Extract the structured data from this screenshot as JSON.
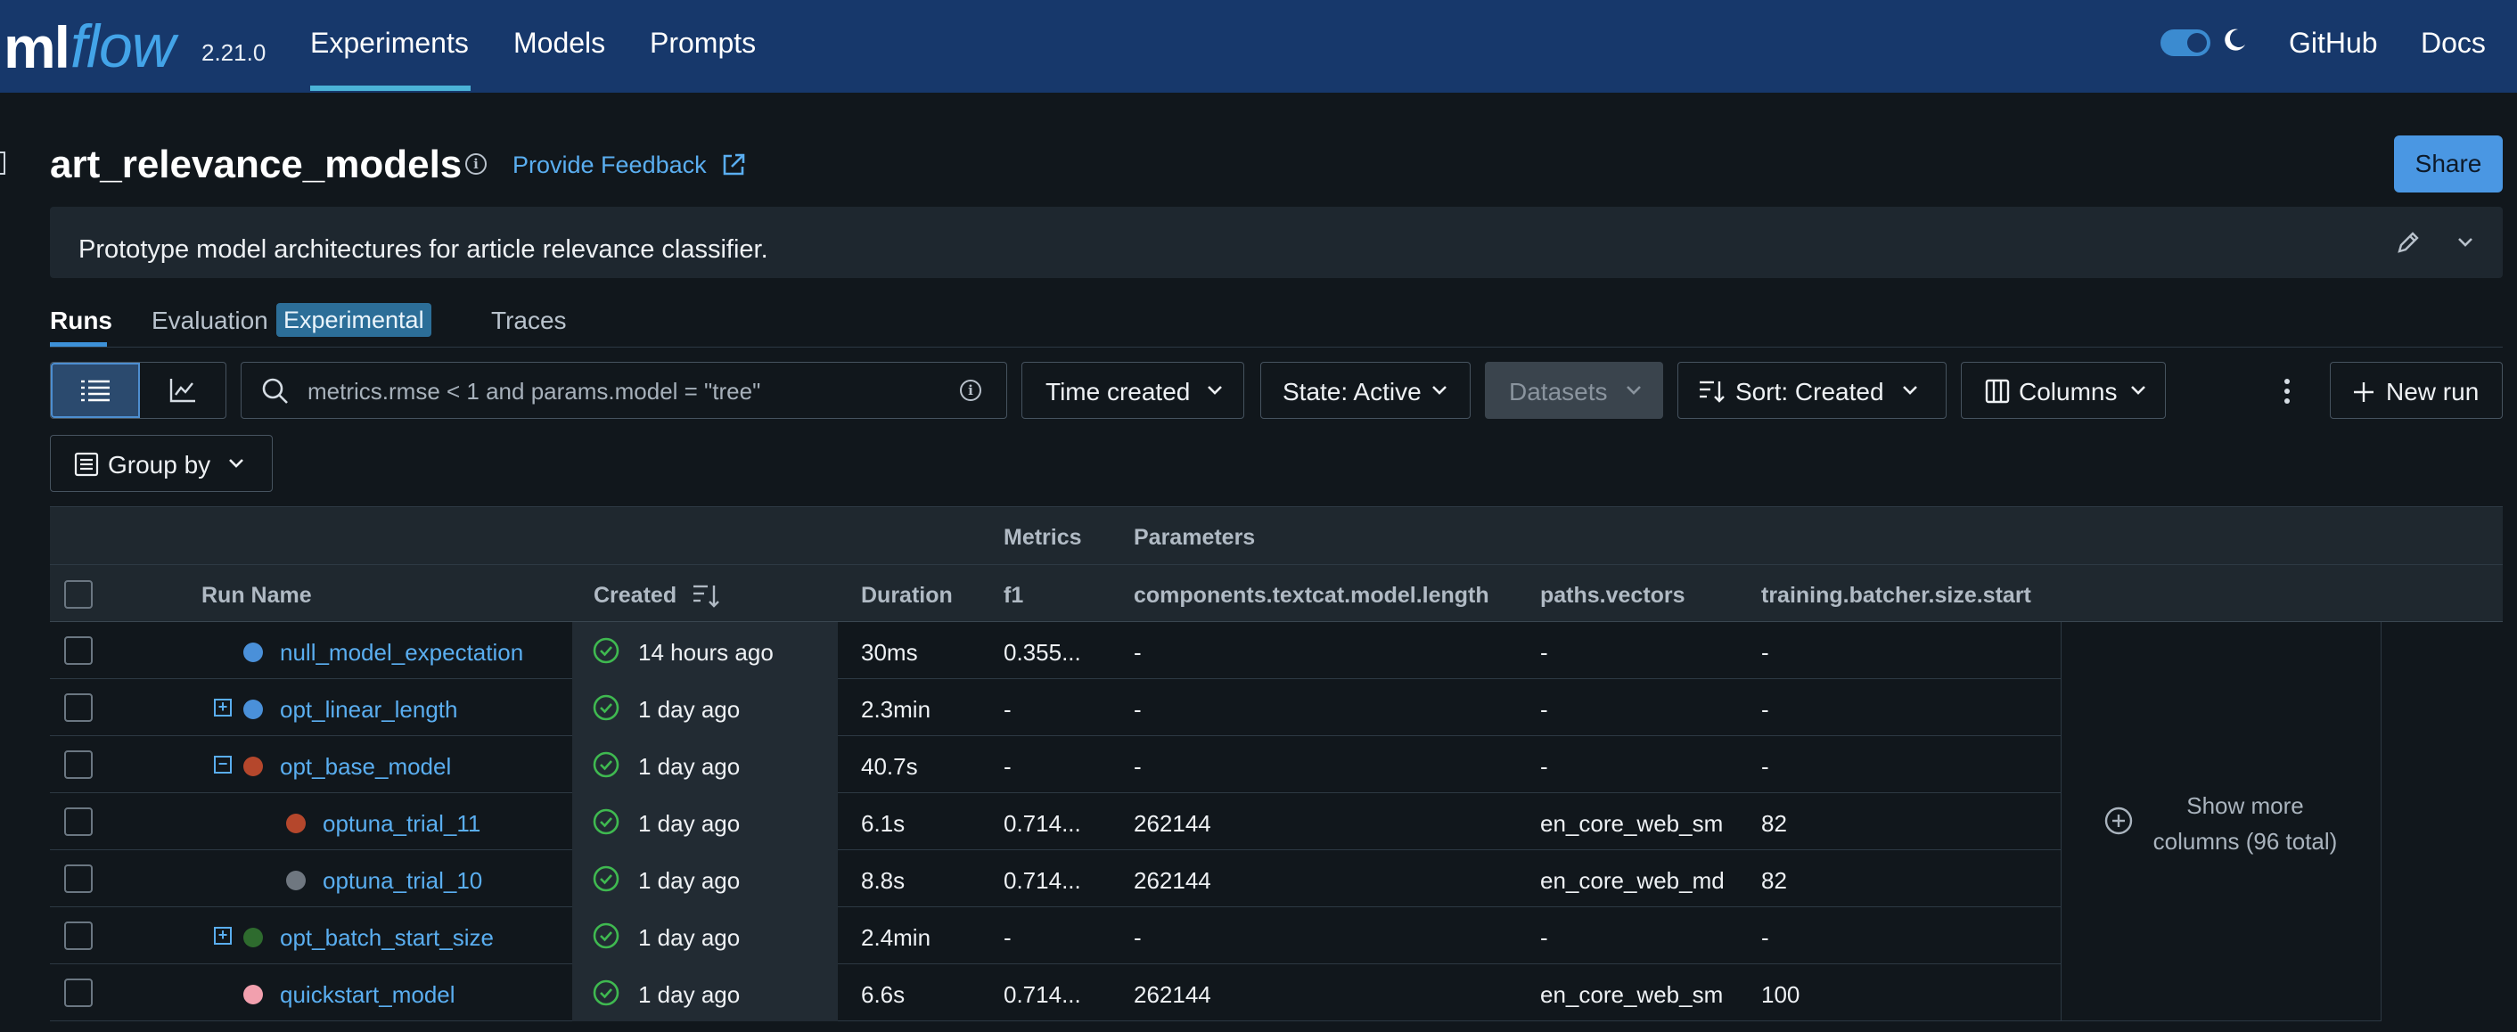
{
  "header": {
    "logo_ml": "ml",
    "logo_flow": "flow",
    "version": "2.21.0",
    "nav": [
      "Experiments",
      "Models",
      "Prompts"
    ],
    "links": [
      "GitHub",
      "Docs"
    ]
  },
  "experiment": {
    "title": "art_relevance_models",
    "feedback": "Provide Feedback",
    "share": "Share",
    "description": "Prototype model architectures for article relevance classifier."
  },
  "tabs": {
    "runs": "Runs",
    "evaluation": "Evaluation",
    "experimental_badge": "Experimental",
    "traces": "Traces"
  },
  "toolbar": {
    "search_placeholder": "metrics.rmse < 1 and params.model = \"tree\"",
    "time_created": "Time created",
    "state": "State: Active",
    "datasets": "Datasets",
    "sort": "Sort: Created",
    "columns": "Columns",
    "new_run": "New run",
    "group_by": "Group by"
  },
  "table": {
    "group_metrics": "Metrics",
    "group_parameters": "Parameters",
    "columns": [
      "Run Name",
      "Created",
      "Duration",
      "f1",
      "components.textcat.model.length",
      "paths.vectors",
      "training.batcher.size.start"
    ],
    "rows": [
      {
        "name": "null_model_expectation",
        "created": "14 hours ago",
        "duration": "30ms",
        "f1": "0.355...",
        "length": "-",
        "vectors": "-",
        "batch": "-"
      },
      {
        "name": "opt_linear_length",
        "created": "1 day ago",
        "duration": "2.3min",
        "f1": "-",
        "length": "-",
        "vectors": "-",
        "batch": "-"
      },
      {
        "name": "opt_base_model",
        "created": "1 day ago",
        "duration": "40.7s",
        "f1": "-",
        "length": "-",
        "vectors": "-",
        "batch": "-"
      },
      {
        "name": "optuna_trial_11",
        "created": "1 day ago",
        "duration": "6.1s",
        "f1": "0.714...",
        "length": "262144",
        "vectors": "en_core_web_sm",
        "batch": "82"
      },
      {
        "name": "optuna_trial_10",
        "created": "1 day ago",
        "duration": "8.8s",
        "f1": "0.714...",
        "length": "262144",
        "vectors": "en_core_web_md",
        "batch": "82"
      },
      {
        "name": "opt_batch_start_size",
        "created": "1 day ago",
        "duration": "2.4min",
        "f1": "-",
        "length": "-",
        "vectors": "-",
        "batch": "-"
      },
      {
        "name": "quickstart_model",
        "created": "1 day ago",
        "duration": "6.6s",
        "f1": "0.714...",
        "length": "262144",
        "vectors": "en_core_web_sm",
        "batch": "100"
      }
    ],
    "show_more_line1": "Show more",
    "show_more_line2": "columns (96 total)"
  },
  "colors": {
    "header_bg": "#17386b",
    "accent": "#4a97e3",
    "link": "#5aaef0",
    "run_dots": [
      "#4a90d9",
      "#4a90d9",
      "#b5472c",
      "#b5472c",
      "#6f7780",
      "#2e6b2e",
      "#f2a0ae"
    ]
  }
}
